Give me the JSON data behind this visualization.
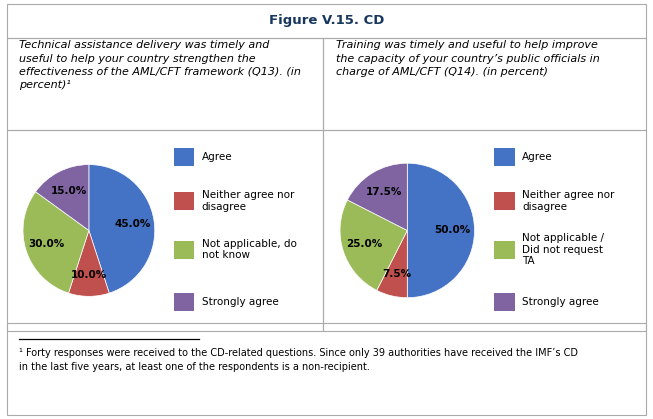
{
  "title": "Figure V.15. CD",
  "left_label": "Technical assistance delivery was timely and\nuseful to help your country strengthen the\neffectiveness of the AML/CFT framework (Q13). (in\npercent)¹",
  "right_label": "Training was timely and useful to help improve\nthe capacity of your country’s public officials in\ncharge of AML/CFT (Q14). (in percent)",
  "pie1_values": [
    45.0,
    10.0,
    30.0,
    15.0
  ],
  "pie1_labels": [
    "45.0%",
    "10.0%",
    "30.0%",
    "15.0%"
  ],
  "pie1_colors": [
    "#4472C4",
    "#C0504D",
    "#9BBB59",
    "#8064A2"
  ],
  "pie2_values": [
    50.0,
    7.5,
    25.0,
    17.5
  ],
  "pie2_labels": [
    "50.0%",
    "7.5%",
    "25.0%",
    "17.5%"
  ],
  "pie2_colors": [
    "#4472C4",
    "#C0504D",
    "#9BBB59",
    "#8064A2"
  ],
  "legend1_labels": [
    "Agree",
    "Neither agree nor\ndisagree",
    "Not applicable, do\nnot know",
    "Strongly agree"
  ],
  "legend2_labels": [
    "Agree",
    "Neither agree nor\ndisagree",
    "Not applicable /\nDid not request\nTA",
    "Strongly agree"
  ],
  "footnote": "¹ Forty responses were received to the CD-related questions. Since only 39 authorities have received the IMF’s CD\nin the last five years, at least one of the respondents is a non-recipient.",
  "pie1_startangle": 90,
  "pie2_startangle": 90,
  "title_color": "#17375E",
  "title_fontsize": 9.5,
  "label_fontsize": 8,
  "legend_fontsize": 7.5,
  "pct_fontsize": 7.5,
  "footnote_fontsize": 7,
  "border_color": "#AAAAAA"
}
